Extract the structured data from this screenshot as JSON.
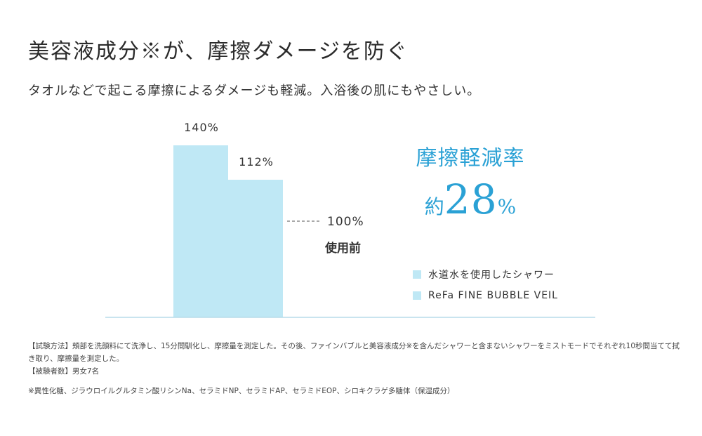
{
  "header": {
    "title": "美容液成分※が、摩擦ダメージを防ぐ",
    "subtitle": "タオルなどで起こる摩擦によるダメージも軽減。入浴後の肌にもやさしい。"
  },
  "chart_data": {
    "type": "bar",
    "categories": [
      "水道水を使用したシャワー",
      "ReFa FINE BUBBLE VEIL"
    ],
    "values": [
      140,
      112
    ],
    "value_labels": [
      "140%",
      "112%"
    ],
    "reference": {
      "value": 100,
      "label": "100%",
      "sublabel": "使用前"
    },
    "ylim": [
      0,
      175
    ],
    "legend": [
      "水道水を使用したシャワー",
      "ReFa FINE BUBBLE VEIL"
    ],
    "legend_position": "right",
    "colors": [
      "#bfe8f5",
      "#bfe8f5"
    ]
  },
  "stat": {
    "title": "摩擦軽減率",
    "prefix": "約",
    "value": "28",
    "unit": "%"
  },
  "notes": {
    "test_method": "【試験方法】頬部を洗顔料にて洗浄し、15分間馴化し、摩擦量を測定した。その後、ファインバブルと美容液成分※を含んだシャワーと含まないシャワーをミストモードでそれぞれ10秒間当てて拭き取り、摩擦量を測定した。",
    "subjects": "【被験者数】男女7名",
    "footnote": "※異性化糖、ジラウロイルグルタミン酸リシンNa、セラミドNP、セラミドAP、セラミドEOP、シロキクラゲ多糖体（保湿成分）"
  },
  "colors": {
    "bar": "#bfe8f5",
    "accent": "#2aa1d5",
    "axis": "#b7dcea"
  }
}
